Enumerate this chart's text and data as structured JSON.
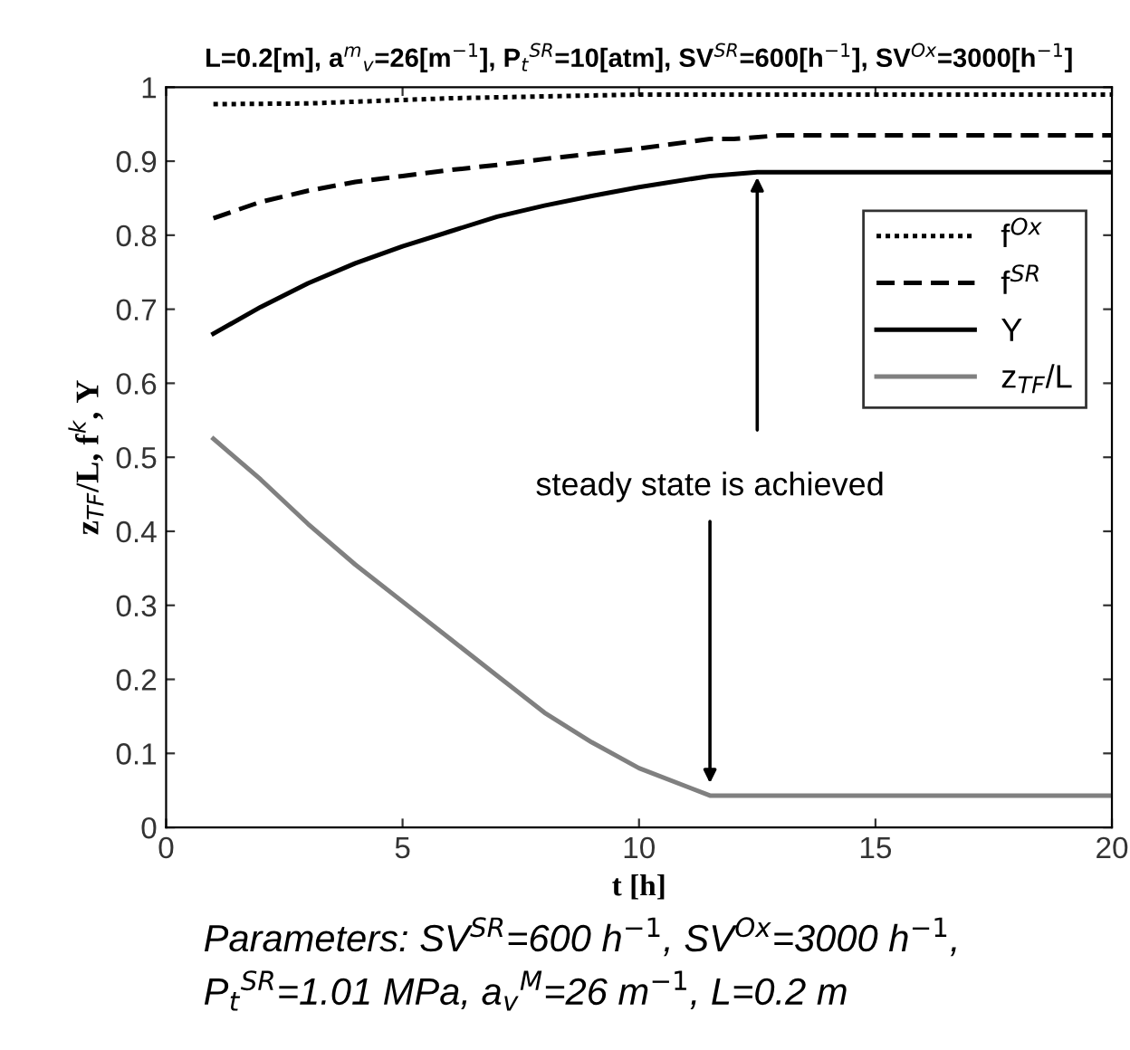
{
  "chart_data": {
    "type": "line",
    "title": "L=0.2[m], a$^{m}$$_{v}$=26[m$^{−1}$], P$_{t}$$^{SR}$=10[atm], SV$^{SR}$=600[h$^{−1}$], SV$^{Ox}$=3000[h$^{−1}$]",
    "xlabel": "t [h]",
    "ylabel": "z$_{TF}$/L, f$^{k}$, Y",
    "series": [
      {
        "name": "f$^{Ox}$",
        "color": "#000000",
        "line_style": "dotted",
        "x": [
          1,
          3,
          6,
          10,
          20
        ],
        "values": [
          0.977,
          0.978,
          0.985,
          0.99,
          0.99
        ]
      },
      {
        "name": "f$^{SR}$",
        "color": "#000000",
        "line_style": "dashed",
        "x": [
          1,
          2,
          3,
          4,
          5,
          6,
          7,
          8,
          9,
          10,
          11.5,
          12,
          13,
          20
        ],
        "values": [
          0.823,
          0.845,
          0.86,
          0.872,
          0.88,
          0.888,
          0.895,
          0.903,
          0.91,
          0.917,
          0.93,
          0.93,
          0.935,
          0.935
        ]
      },
      {
        "name": "Y",
        "color": "#000000",
        "line_style": "solid",
        "x": [
          1,
          2,
          3,
          4,
          5,
          6,
          7,
          8,
          9,
          10,
          11.5,
          12.5,
          20
        ],
        "values": [
          0.667,
          0.703,
          0.735,
          0.762,
          0.785,
          0.805,
          0.825,
          0.84,
          0.853,
          0.865,
          0.88,
          0.885,
          0.885
        ]
      },
      {
        "name": "z$_{TF}$/L",
        "color": "#808080",
        "line_style": "solid",
        "x": [
          1,
          2,
          3,
          4,
          5,
          6,
          7,
          8,
          9,
          10,
          11.5,
          20
        ],
        "values": [
          0.525,
          0.47,
          0.41,
          0.355,
          0.305,
          0.255,
          0.205,
          0.155,
          0.115,
          0.08,
          0.043,
          0.043
        ]
      }
    ],
    "xlim": [
      0,
      20
    ],
    "ylim": [
      0,
      1
    ],
    "xticks": [
      0,
      5,
      10,
      15,
      20
    ],
    "yticks": [
      0,
      0.1,
      0.2,
      0.3,
      0.4,
      0.5,
      0.6,
      0.7,
      0.8,
      0.9,
      1
    ],
    "legend": "right",
    "grid": false,
    "marker": "none",
    "annotations": [
      {
        "text": "steady state is achieved",
        "x": 12.5,
        "y": 0.885
      },
      "Parameters: SV$^{SR}$=600 h$^{−1}$, SV$^{Ox}$=3000 h$^{−1}$,",
      "P$_{t}$$^{SR}$=1.01 MPa, a$_{v}$$^{M}$=26 m$^{−1}$, L=0.2 m"
    ]
  }
}
